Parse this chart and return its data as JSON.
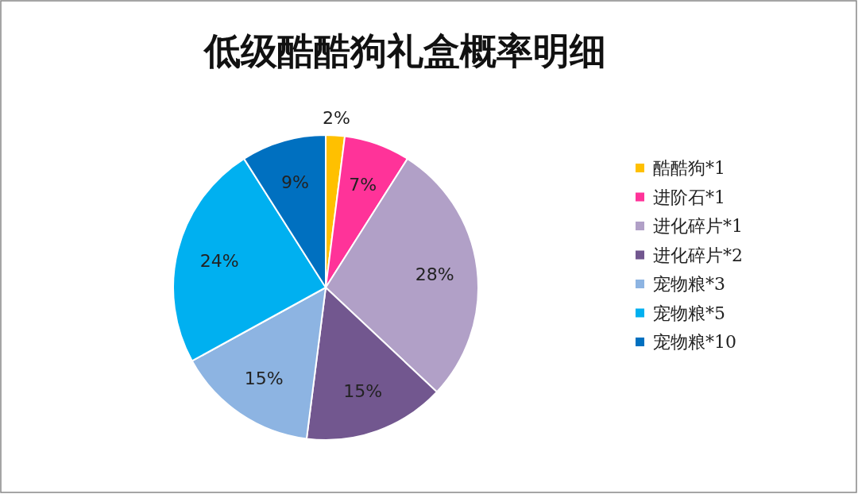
{
  "chart_data": {
    "type": "pie",
    "title": "低级酷酷狗礼盒概率明细",
    "categories": [
      "酷酷狗*1",
      "进阶石*1",
      "进化碎片*1",
      "进化碎片*2",
      "宠物粮*3",
      "宠物粮*5",
      "宠物粮*10"
    ],
    "values": [
      2,
      7,
      28,
      15,
      15,
      24,
      9
    ],
    "value_labels": [
      "2%",
      "7%",
      "28%",
      "15%",
      "15%",
      "24%",
      "9%"
    ],
    "colors": [
      "#ffc000",
      "#ff3399",
      "#b1a0c7",
      "#72578f",
      "#8db4e2",
      "#00b0f0",
      "#0070c0"
    ],
    "legend": "right"
  }
}
